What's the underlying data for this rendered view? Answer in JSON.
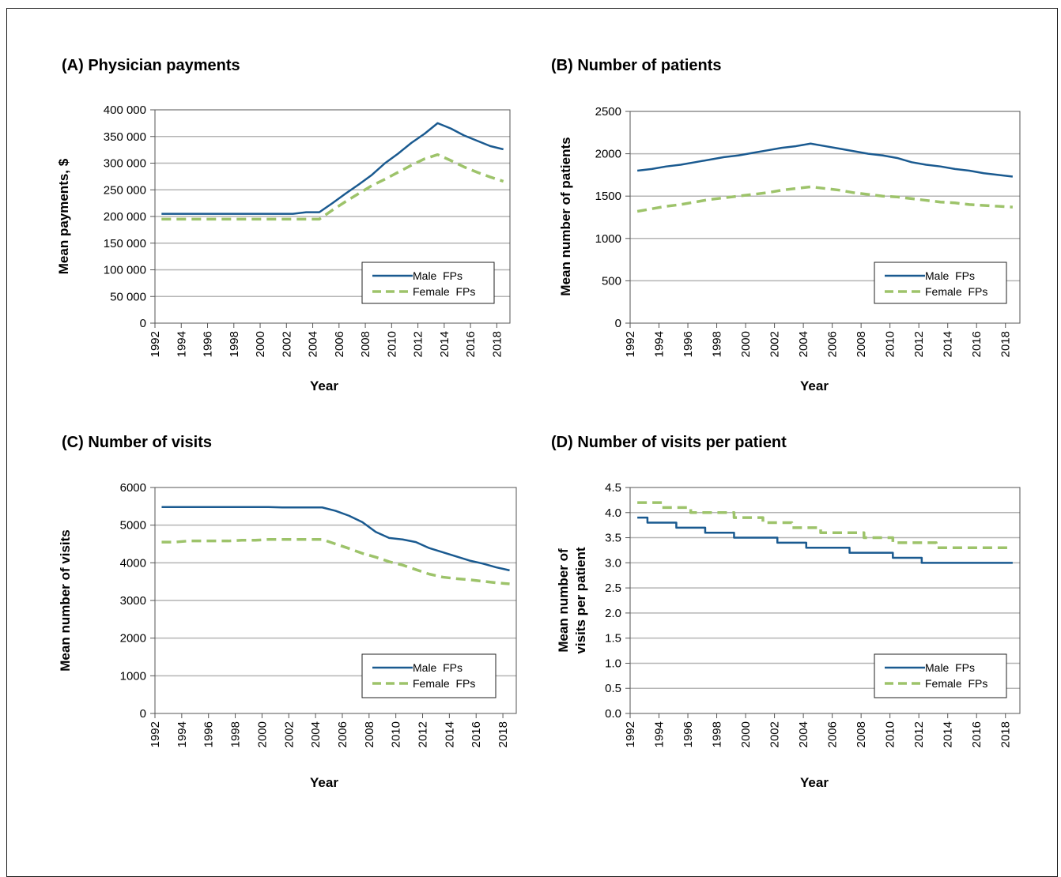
{
  "colors": {
    "male": "#1a5a90",
    "female": "#9dc36a",
    "grid": "#b4b4b4",
    "axis": "#555555"
  },
  "chart_data": [
    {
      "type": "line",
      "title": "(A) Physician payments",
      "xlabel": "Year",
      "ylabel": "Mean payments, $",
      "ylim": [
        0,
        400000
      ],
      "yticks": [
        0,
        50000,
        100000,
        150000,
        200000,
        250000,
        300000,
        350000,
        400000
      ],
      "ytick_labels": [
        "0",
        "50 000",
        "100 000",
        "150 000",
        "200 000",
        "250 000",
        "300 000",
        "350 000",
        "400 000"
      ],
      "xlim": [
        1992,
        2019
      ],
      "xticks": [
        1992,
        1994,
        1996,
        1998,
        2000,
        2002,
        2004,
        2006,
        2008,
        2010,
        2012,
        2014,
        2016,
        2018
      ],
      "grid": true,
      "legend": "bottom-right",
      "series": [
        {
          "name": "Male  FPs",
          "x": [
            1992.5,
            1993.5,
            1994.5,
            1995.5,
            1996.5,
            1997.5,
            1998.5,
            1999.5,
            2000.5,
            2001.5,
            2002.5,
            2003.5,
            2004.5,
            2005.5,
            2006.5,
            2007.5,
            2008.5,
            2009.5,
            2010.5,
            2011.5,
            2012.5,
            2013.5,
            2014.5,
            2015.5,
            2016.5,
            2017.5,
            2018.5
          ],
          "values": [
            205000,
            205000,
            205000,
            205000,
            205000,
            205000,
            205000,
            205000,
            205000,
            205000,
            205000,
            208000,
            208000,
            225000,
            243000,
            260000,
            278000,
            300000,
            318000,
            338000,
            355000,
            375000,
            365000,
            352000,
            342000,
            332000,
            326000
          ]
        },
        {
          "name": "Female  FPs",
          "x": [
            1992.5,
            1993.5,
            1994.5,
            1995.5,
            1996.5,
            1997.5,
            1998.5,
            1999.5,
            2000.5,
            2001.5,
            2002.5,
            2003.5,
            2004.5,
            2005.5,
            2006.5,
            2007.5,
            2008.5,
            2009.5,
            2010.5,
            2011.5,
            2012.5,
            2013.5,
            2014.5,
            2015.5,
            2016.5,
            2017.5,
            2018.5
          ],
          "values": [
            195000,
            195000,
            195000,
            195000,
            195000,
            195000,
            195000,
            195000,
            195000,
            195000,
            195000,
            195000,
            195000,
            212000,
            228000,
            243000,
            258000,
            270000,
            283000,
            296000,
            308000,
            316000,
            305000,
            293000,
            283000,
            274000,
            266000
          ]
        }
      ]
    },
    {
      "type": "line",
      "title": "(B) Number of patients",
      "xlabel": "Year",
      "ylabel": "Mean number of patients",
      "ylim": [
        0,
        2500
      ],
      "yticks": [
        0,
        500,
        1000,
        1500,
        2000,
        2500
      ],
      "ytick_labels": [
        "0",
        "500",
        "1000",
        "1500",
        "2000",
        "2500"
      ],
      "xlim": [
        1992,
        2019
      ],
      "xticks": [
        1992,
        1994,
        1996,
        1998,
        2000,
        2002,
        2004,
        2006,
        2008,
        2010,
        2012,
        2014,
        2016,
        2018
      ],
      "grid": true,
      "legend": "bottom-right",
      "series": [
        {
          "name": "Male  FPs",
          "x": [
            1992.5,
            1993.5,
            1994.5,
            1995.5,
            1996.5,
            1997.5,
            1998.5,
            1999.5,
            2000.5,
            2001.5,
            2002.5,
            2003.5,
            2004.5,
            2005.5,
            2006.5,
            2007.5,
            2008.5,
            2009.5,
            2010.5,
            2011.5,
            2012.5,
            2013.5,
            2014.5,
            2015.5,
            2016.5,
            2017.5,
            2018.5
          ],
          "values": [
            1800,
            1820,
            1850,
            1870,
            1900,
            1930,
            1960,
            1980,
            2010,
            2040,
            2070,
            2090,
            2120,
            2090,
            2060,
            2030,
            2000,
            1980,
            1950,
            1900,
            1870,
            1850,
            1820,
            1800,
            1770,
            1750,
            1730
          ]
        },
        {
          "name": "Female  FPs",
          "x": [
            1992.5,
            1993.5,
            1994.5,
            1995.5,
            1996.5,
            1997.5,
            1998.5,
            1999.5,
            2000.5,
            2001.5,
            2002.5,
            2003.5,
            2004.5,
            2005.5,
            2006.5,
            2007.5,
            2008.5,
            2009.5,
            2010.5,
            2011.5,
            2012.5,
            2013.5,
            2014.5,
            2015.5,
            2016.5,
            2017.5,
            2018.5
          ],
          "values": [
            1320,
            1350,
            1380,
            1400,
            1430,
            1460,
            1480,
            1500,
            1520,
            1540,
            1570,
            1590,
            1610,
            1590,
            1570,
            1540,
            1520,
            1500,
            1490,
            1470,
            1450,
            1430,
            1420,
            1400,
            1390,
            1380,
            1370
          ]
        }
      ]
    },
    {
      "type": "line",
      "title": "(C) Number of visits",
      "xlabel": "Year",
      "ylabel": "Mean number of visits",
      "ylim": [
        0,
        6000
      ],
      "yticks": [
        0,
        1000,
        2000,
        3000,
        4000,
        5000,
        6000
      ],
      "ytick_labels": [
        "0",
        "1000",
        "2000",
        "3000",
        "4000",
        "5000",
        "6000"
      ],
      "xlim": [
        1992,
        2019
      ],
      "xticks": [
        1992,
        1994,
        1996,
        1998,
        2000,
        2002,
        2004,
        2006,
        2008,
        2010,
        2012,
        2014,
        2016,
        2018
      ],
      "grid": true,
      "legend": "bottom-right",
      "series": [
        {
          "name": "Male  FPs",
          "x": [
            1992.5,
            1993.5,
            1994.5,
            1995.5,
            1996.5,
            1997.5,
            1998.5,
            1999.5,
            2000.5,
            2001.5,
            2002.5,
            2003.5,
            2004.5,
            2005.5,
            2006.5,
            2007.5,
            2008.5,
            2009.5,
            2010.5,
            2011.5,
            2012.5,
            2013.5,
            2014.5,
            2015.5,
            2016.5,
            2017.5,
            2018.5
          ],
          "values": [
            5480,
            5480,
            5480,
            5480,
            5480,
            5480,
            5480,
            5480,
            5480,
            5470,
            5470,
            5470,
            5470,
            5380,
            5250,
            5080,
            4820,
            4660,
            4620,
            4550,
            4390,
            4280,
            4170,
            4060,
            3980,
            3880,
            3800
          ]
        },
        {
          "name": "Female  FPs",
          "x": [
            1992.5,
            1993.5,
            1994.5,
            1995.5,
            1996.5,
            1997.5,
            1998.5,
            1999.5,
            2000.5,
            2001.5,
            2002.5,
            2003.5,
            2004.5,
            2005.5,
            2006.5,
            2007.5,
            2008.5,
            2009.5,
            2010.5,
            2011.5,
            2012.5,
            2013.5,
            2014.5,
            2015.5,
            2016.5,
            2017.5,
            2018.5
          ],
          "values": [
            4550,
            4550,
            4580,
            4580,
            4580,
            4580,
            4600,
            4600,
            4620,
            4620,
            4620,
            4620,
            4620,
            4500,
            4380,
            4250,
            4150,
            4030,
            3940,
            3820,
            3700,
            3620,
            3580,
            3550,
            3510,
            3470,
            3440
          ]
        }
      ]
    },
    {
      "type": "line",
      "title": "(D) Number of visits per patient",
      "xlabel": "Year",
      "ylabel": [
        "Mean number of",
        "visits per patient"
      ],
      "ylim": [
        0,
        4.5
      ],
      "yticks": [
        0,
        0.5,
        1.0,
        1.5,
        2.0,
        2.5,
        3.0,
        3.5,
        4.0,
        4.5
      ],
      "ytick_labels": [
        "0.0",
        "0.5",
        "1.0",
        "1.5",
        "2.0",
        "2.5",
        "3.0",
        "3.5",
        "4.0",
        "4.5"
      ],
      "xlim": [
        1992,
        2019
      ],
      "xticks": [
        1992,
        1994,
        1996,
        1998,
        2000,
        2002,
        2004,
        2006,
        2008,
        2010,
        2012,
        2014,
        2016,
        2018
      ],
      "grid": true,
      "legend": "bottom-right",
      "series": [
        {
          "name": "Male  FPs",
          "step": true,
          "x": [
            1992.5,
            1993.5,
            1994.5,
            1995.5,
            1996.5,
            1997.5,
            1998.5,
            1999.5,
            2000.5,
            2001.5,
            2002.5,
            2003.5,
            2004.5,
            2005.5,
            2006.5,
            2007.5,
            2008.5,
            2009.5,
            2010.5,
            2011.5,
            2012.5,
            2013.5,
            2014.5,
            2015.5,
            2016.5,
            2017.5,
            2018.5
          ],
          "values": [
            3.9,
            3.8,
            3.8,
            3.7,
            3.7,
            3.6,
            3.6,
            3.5,
            3.5,
            3.5,
            3.4,
            3.4,
            3.3,
            3.3,
            3.3,
            3.2,
            3.2,
            3.2,
            3.1,
            3.1,
            3.0,
            3.0,
            3.0,
            3.0,
            3.0,
            3.0,
            3.0
          ]
        },
        {
          "name": "Female  FPs",
          "step": true,
          "x": [
            1992.5,
            1993.5,
            1994.5,
            1995.5,
            1996.5,
            1997.5,
            1998.5,
            1999.5,
            2000.5,
            2001.5,
            2002.5,
            2003.5,
            2004.5,
            2005.5,
            2006.5,
            2007.5,
            2008.5,
            2009.5,
            2010.5,
            2011.5,
            2012.5,
            2013.5,
            2014.5,
            2015.5,
            2016.5,
            2017.5,
            2018.5
          ],
          "values": [
            4.2,
            4.2,
            4.1,
            4.1,
            4.0,
            4.0,
            4.0,
            3.9,
            3.9,
            3.8,
            3.8,
            3.7,
            3.7,
            3.6,
            3.6,
            3.6,
            3.5,
            3.5,
            3.4,
            3.4,
            3.4,
            3.3,
            3.3,
            3.3,
            3.3,
            3.3,
            3.3
          ]
        }
      ]
    }
  ]
}
